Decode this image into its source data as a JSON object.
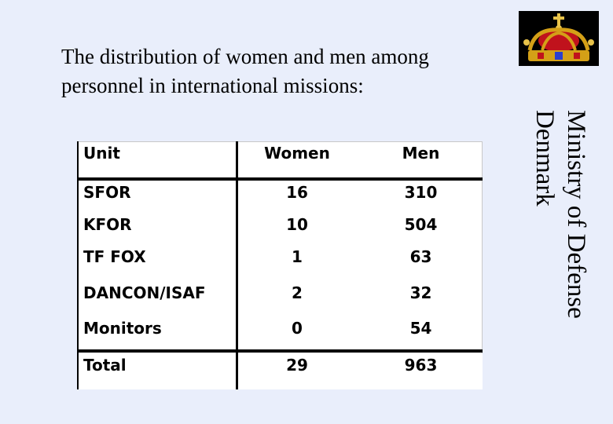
{
  "slide": {
    "title_line1": "The distribution of women and men among",
    "title_line2": "personnel in international missions:",
    "side_line1": "Ministry of Defense",
    "side_line2": "Denmark"
  },
  "logo": {
    "icon": "crown-icon",
    "colors": {
      "gold": "#d4a017",
      "red": "#c0121c",
      "blue": "#2a3fd0"
    }
  },
  "table": {
    "headers": [
      "Unit",
      "Women",
      "Men"
    ],
    "rows": [
      [
        "SFOR",
        "16",
        "310"
      ],
      [
        "KFOR",
        "10",
        "504"
      ],
      [
        "TF FOX",
        "1",
        "63"
      ],
      [
        "DANCON/ISAF",
        "2",
        "32"
      ],
      [
        "Monitors",
        "0",
        "54"
      ]
    ],
    "total": [
      "Total",
      "29",
      "963"
    ]
  }
}
